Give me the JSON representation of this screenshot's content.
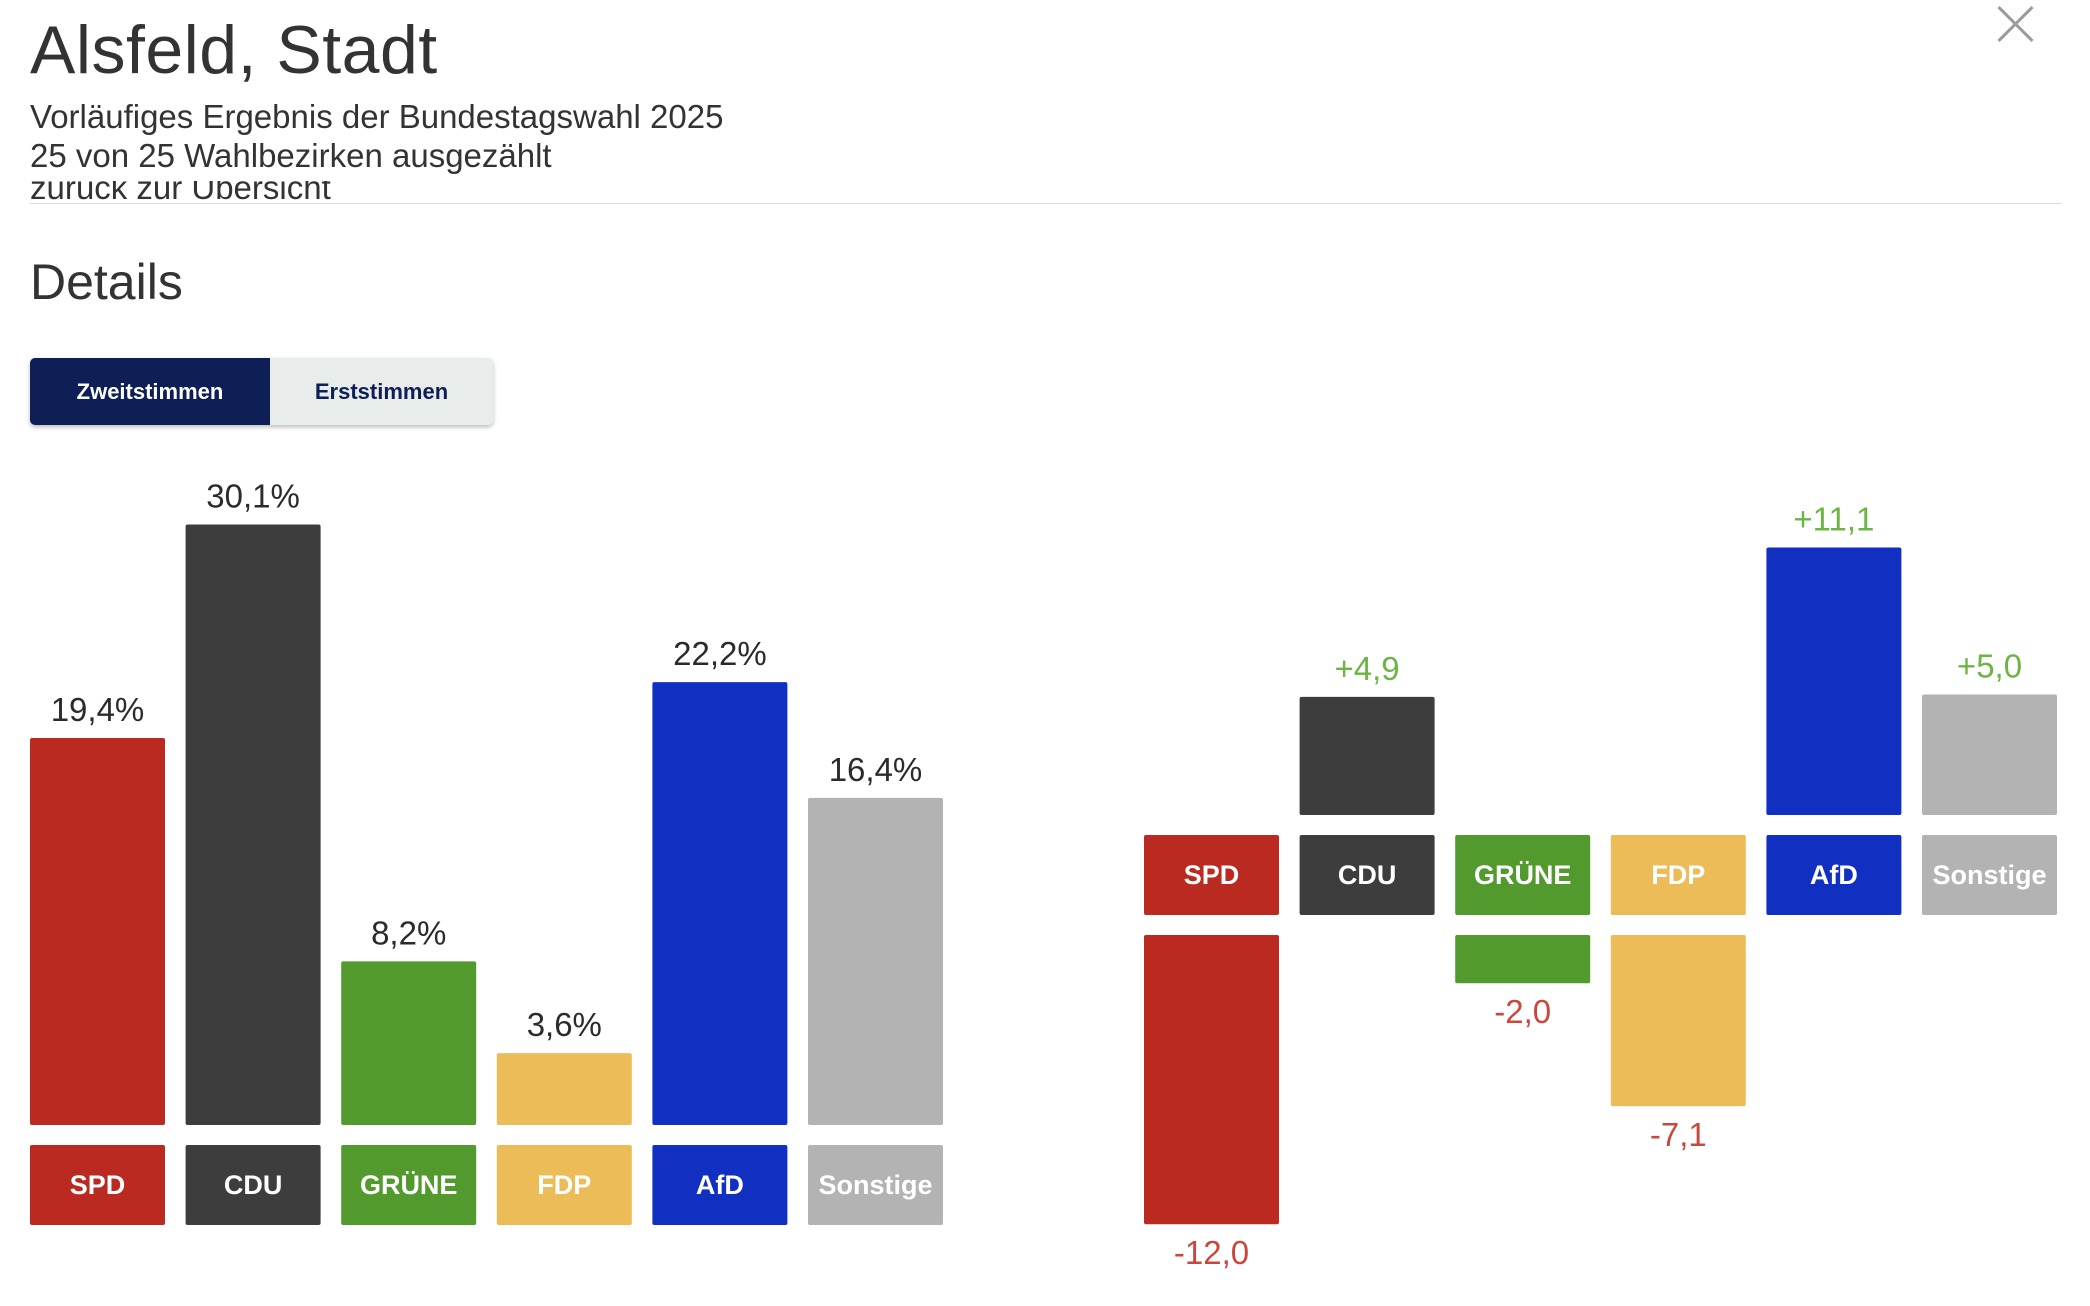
{
  "header": {
    "title": "Alsfeld, Stadt",
    "subtitle_line1": "Vorläufiges Ergebnis der Bundestagswahl 2025",
    "subtitle_line2": "25 von 25 Wahlbezirken ausgezählt",
    "close_icon": "close-icon"
  },
  "back_link": "zurück zur Übersicht",
  "section_title": "Details",
  "tabs": [
    {
      "label": "Zweitstimmen",
      "active": true
    },
    {
      "label": "Erststimmen",
      "active": false
    }
  ],
  "colors": {
    "SPD": "#bb2a21",
    "CDU": "#3d3d3d",
    "GRÜNE": "#529a2d",
    "FDP": "#ebbc58",
    "AfD": "#1130c1",
    "Sonstige": "#b3b3b3",
    "gain": "#6cb544",
    "loss": "#c9473c",
    "value_text": "#2b2b2b"
  },
  "chart_data": [
    {
      "type": "bar",
      "categories": [
        "SPD",
        "CDU",
        "GRÜNE",
        "FDP",
        "AfD",
        "Sonstige"
      ],
      "values": [
        19.4,
        30.1,
        8.2,
        3.6,
        22.2,
        16.4
      ],
      "labels": [
        "19,4%",
        "30,1%",
        "8,2%",
        "3,6%",
        "22,2%",
        "16,4%"
      ]
    },
    {
      "type": "bar",
      "categories": [
        "SPD",
        "CDU",
        "GRÜNE",
        "FDP",
        "AfD",
        "Sonstige"
      ],
      "values": [
        -12.0,
        4.9,
        -2.0,
        -7.1,
        11.1,
        5.0
      ],
      "labels": [
        "-12,0",
        "+4,9",
        "-2,0",
        "-7,1",
        "+11,1",
        "+5,0"
      ]
    }
  ]
}
